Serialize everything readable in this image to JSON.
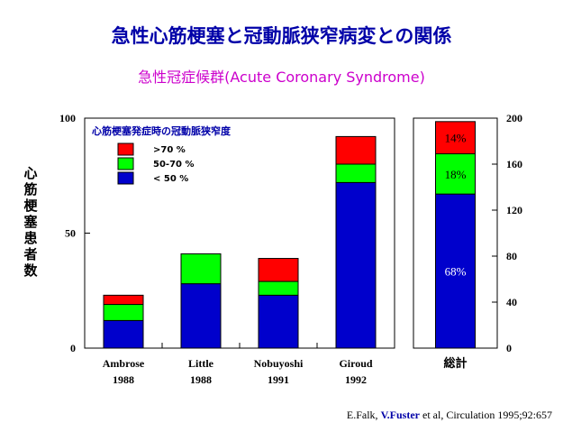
{
  "title": "急性心筋梗塞と冠動脈狭窄病変との関係",
  "subtitle": "急性冠症候群(Acute Coronary Syndrome)",
  "citation": {
    "pre": "E.Falk, ",
    "highlight": "V.Fuster",
    "post": " et al, Circulation 1995;92:657"
  },
  "colors": {
    "severe": "#ff0000",
    "moderate": "#00ff00",
    "mild": "#0000cc",
    "title": "#0000a8",
    "subtitle": "#cc00cc"
  },
  "chart_data": {
    "type": "bar",
    "stacked": true,
    "ylabel": "心筋梗塞患者数",
    "ylim": [
      0,
      100
    ],
    "y_ticks": [
      "0",
      "50",
      "100"
    ],
    "y2lim": [
      0,
      200
    ],
    "y2_ticks": [
      "0",
      "40",
      "80",
      "120",
      "160",
      "200"
    ],
    "legend_title": "心筋梗塞発症時の冠動脈狭窄度",
    "legend_position": "top-left",
    "categories": [
      {
        "name": "Ambrose",
        "year": "1988"
      },
      {
        "name": "Little",
        "year": "1988"
      },
      {
        "name": "Nobuyoshi",
        "year": "1991"
      },
      {
        "name": "Giroud",
        "year": "1992"
      }
    ],
    "series": [
      {
        "name": "< 50 %",
        "color": "#0000cc",
        "values": [
          12,
          28,
          23,
          72
        ]
      },
      {
        "name": "50-70 %",
        "color": "#00ff00",
        "values": [
          7,
          13,
          6,
          8
        ]
      },
      {
        "name": ">70 %",
        "color": "#ff0000",
        "values": [
          4,
          0,
          10,
          12
        ]
      }
    ],
    "total": {
      "label": "総計",
      "axis": "right",
      "values": [
        134,
        35,
        28
      ],
      "labels": [
        "68%",
        "18%",
        "14%"
      ]
    }
  }
}
